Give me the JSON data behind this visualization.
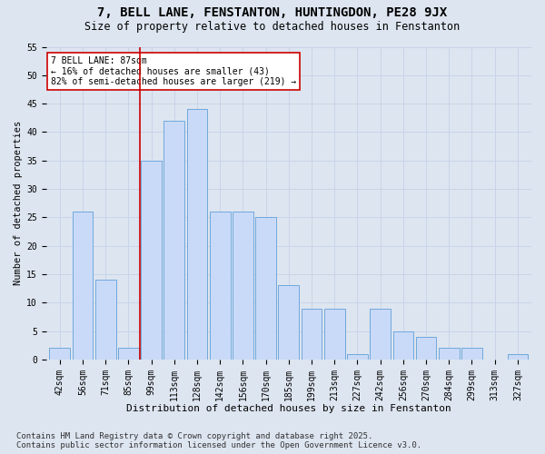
{
  "title": "7, BELL LANE, FENSTANTON, HUNTINGDON, PE28 9JX",
  "subtitle": "Size of property relative to detached houses in Fenstanton",
  "xlabel": "Distribution of detached houses by size in Fenstanton",
  "ylabel": "Number of detached properties",
  "categories": [
    "42sqm",
    "56sqm",
    "71sqm",
    "85sqm",
    "99sqm",
    "113sqm",
    "128sqm",
    "142sqm",
    "156sqm",
    "170sqm",
    "185sqm",
    "199sqm",
    "213sqm",
    "227sqm",
    "242sqm",
    "256sqm",
    "270sqm",
    "284sqm",
    "299sqm",
    "313sqm",
    "327sqm"
  ],
  "values": [
    2,
    26,
    14,
    2,
    35,
    42,
    44,
    26,
    26,
    25,
    13,
    9,
    9,
    1,
    9,
    5,
    4,
    2,
    2,
    0,
    1
  ],
  "bar_color": "#c9daf8",
  "bar_edge_color": "#6fa8dc",
  "grid_color": "#c8d4e8",
  "background_color": "#dde5f0",
  "vline_x": 3.5,
  "vline_color": "#cc0000",
  "annotation_text": "7 BELL LANE: 87sqm\n← 16% of detached houses are smaller (43)\n82% of semi-detached houses are larger (219) →",
  "annotation_box_color": "#ffffff",
  "annotation_box_edge": "#cc0000",
  "ylim": [
    0,
    55
  ],
  "yticks": [
    0,
    5,
    10,
    15,
    20,
    25,
    30,
    35,
    40,
    45,
    50,
    55
  ],
  "footer": "Contains HM Land Registry data © Crown copyright and database right 2025.\nContains public sector information licensed under the Open Government Licence v3.0.",
  "title_fontsize": 10,
  "subtitle_fontsize": 8.5,
  "xlabel_fontsize": 8,
  "ylabel_fontsize": 7.5,
  "tick_fontsize": 7,
  "footer_fontsize": 6.5,
  "annotation_fontsize": 7
}
